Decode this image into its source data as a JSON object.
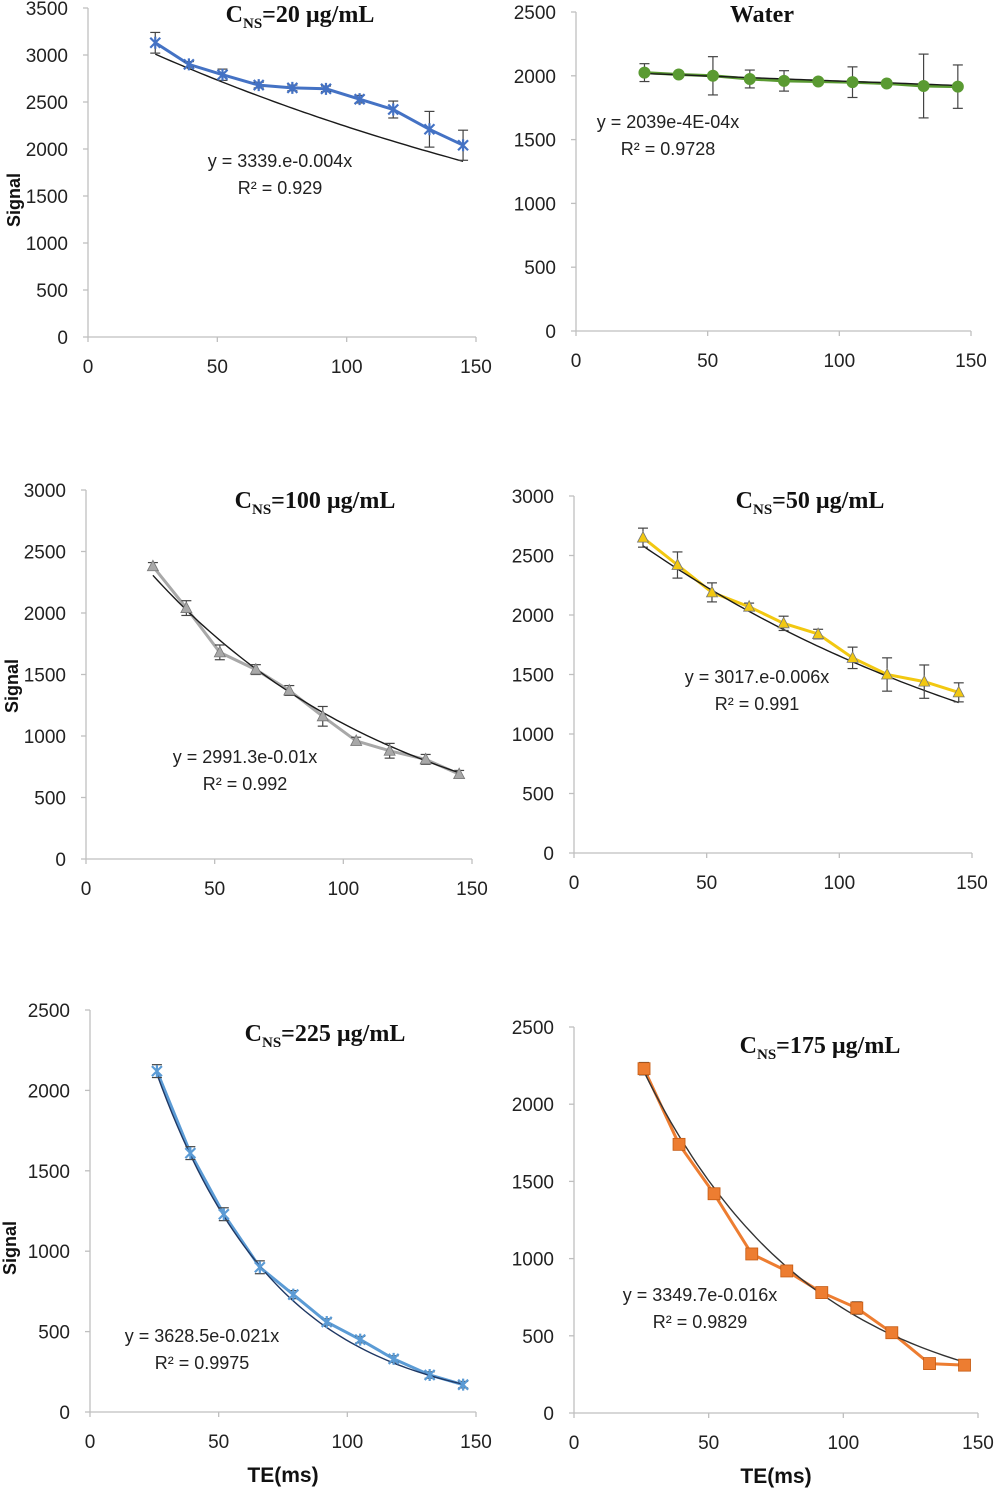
{
  "chart_data": [
    {
      "type": "line",
      "title": "C",
      "title_sub": "NS",
      "title_rest": "=20 µg/mL",
      "ylabel": "Signal",
      "xlabel": "",
      "xlim": [
        0,
        150
      ],
      "ylim": [
        0,
        3500
      ],
      "xticks": [
        0,
        50,
        100,
        150
      ],
      "yticks": [
        0,
        500,
        1000,
        1500,
        2000,
        2500,
        3000,
        3500
      ],
      "x": [
        26,
        39,
        52,
        66,
        79,
        92,
        105,
        118,
        132,
        145
      ],
      "series": [
        {
          "values": [
            3130,
            2900,
            2790,
            2680,
            2650,
            2640,
            2530,
            2420,
            2210,
            2040
          ],
          "errors": [
            110,
            30,
            60,
            30,
            30,
            30,
            40,
            90,
            190,
            160
          ],
          "color": "#4472c4",
          "marker": "star"
        }
      ],
      "trendline": {
        "a": 3339,
        "b": 0.004,
        "color": "#1a1a1a"
      },
      "equation": "y = 3339.e-0.004x",
      "r2": "R² = 0.929"
    },
    {
      "type": "line",
      "title": "Water",
      "ylabel": "",
      "xlabel": "",
      "xlim": [
        0,
        150
      ],
      "ylim": [
        0,
        2500
      ],
      "xticks": [
        0,
        50,
        100,
        150
      ],
      "yticks": [
        0,
        500,
        1000,
        1500,
        2000,
        2500
      ],
      "x": [
        26,
        39,
        52,
        66,
        79,
        92,
        105,
        118,
        132,
        145
      ],
      "series": [
        {
          "values": [
            2025,
            2010,
            2000,
            1975,
            1960,
            1955,
            1950,
            1940,
            1920,
            1915
          ],
          "errors": [
            70,
            20,
            150,
            70,
            80,
            20,
            120,
            20,
            250,
            170
          ],
          "color": "#5a9a32",
          "marker": "circle"
        }
      ],
      "trendline": {
        "a": 2039,
        "b": 0.0004,
        "color": "#1a1a1a"
      },
      "equation": "y = 2039e-4E-04x",
      "r2": "R² = 0.9728"
    },
    {
      "type": "line",
      "title": "C",
      "title_sub": "NS",
      "title_rest": "=100 µg/mL",
      "ylabel": "Signal",
      "xlabel": "",
      "xlim": [
        0,
        150
      ],
      "ylim": [
        0,
        3000
      ],
      "xticks": [
        0,
        50,
        100,
        150
      ],
      "yticks": [
        0,
        500,
        1000,
        1500,
        2000,
        2500,
        3000
      ],
      "x": [
        26,
        39,
        52,
        66,
        79,
        92,
        105,
        118,
        132,
        145
      ],
      "series": [
        {
          "values": [
            2380,
            2040,
            1680,
            1540,
            1370,
            1160,
            960,
            880,
            810,
            690
          ],
          "errors": [
            30,
            60,
            60,
            40,
            40,
            80,
            30,
            60,
            40,
            30
          ],
          "color": "#a8a8a8",
          "marker": "triangle"
        }
      ],
      "trendline": {
        "a": 2991.3,
        "b": 0.01,
        "color": "#1a1a1a"
      },
      "equation": "y = 2991.3e-0.01x",
      "r2": "R² = 0.992"
    },
    {
      "type": "line",
      "title": "C",
      "title_sub": "NS",
      "title_rest": "=50 µg/mL",
      "ylabel": "",
      "xlabel": "",
      "xlim": [
        0,
        150
      ],
      "ylim": [
        0,
        3000
      ],
      "xticks": [
        0,
        50,
        100,
        150
      ],
      "yticks": [
        0,
        500,
        1000,
        1500,
        2000,
        2500,
        3000
      ],
      "x": [
        26,
        39,
        52,
        66,
        79,
        92,
        105,
        118,
        132,
        145
      ],
      "series": [
        {
          "values": [
            2650,
            2420,
            2190,
            2070,
            1930,
            1840,
            1640,
            1500,
            1440,
            1350
          ],
          "errors": [
            80,
            110,
            80,
            30,
            60,
            40,
            90,
            140,
            140,
            80
          ],
          "color": "#f2c811",
          "marker": "triangle"
        }
      ],
      "trendline": {
        "a": 3017,
        "b": 0.006,
        "color": "#1a1a1a"
      },
      "equation": "y = 3017.e-0.006x",
      "r2": "R² = 0.991"
    },
    {
      "type": "line",
      "title": "C",
      "title_sub": "NS",
      "title_rest": "=225 µg/mL",
      "ylabel": "Signal",
      "xlabel": "TE(ms)",
      "xlim": [
        0,
        150
      ],
      "ylim": [
        0,
        2500
      ],
      "xticks": [
        0,
        50,
        100,
        150
      ],
      "yticks": [
        0,
        500,
        1000,
        1500,
        2000,
        2500
      ],
      "x": [
        26,
        39,
        52,
        66,
        79,
        92,
        105,
        118,
        132,
        145
      ],
      "series": [
        {
          "values": [
            2120,
            1610,
            1230,
            900,
            730,
            560,
            450,
            330,
            230,
            170
          ],
          "errors": [
            40,
            40,
            40,
            40,
            25,
            20,
            20,
            20,
            20,
            20
          ],
          "color": "#5b9bd5",
          "marker": "star"
        }
      ],
      "trendline": {
        "a": 3628.5,
        "b": 0.021,
        "color": "#1f3864"
      },
      "equation": "y = 3628.5e-0.021x",
      "r2": "R² = 0.9975"
    },
    {
      "type": "line",
      "title": "C",
      "title_sub": "NS",
      "title_rest": "=175 µg/mL",
      "ylabel": "",
      "xlabel": "TE(ms)",
      "xlim": [
        0,
        150
      ],
      "ylim": [
        0,
        2500
      ],
      "xticks": [
        0,
        50,
        100,
        150
      ],
      "yticks": [
        0,
        500,
        1000,
        1500,
        2000,
        2500
      ],
      "x": [
        26,
        39,
        52,
        66,
        79,
        92,
        105,
        118,
        132,
        145
      ],
      "series": [
        {
          "values": [
            2230,
            1740,
            1420,
            1030,
            920,
            780,
            680,
            520,
            320,
            310
          ],
          "errors": [
            40,
            25,
            20,
            20,
            20,
            20,
            40,
            20,
            20,
            20
          ],
          "color": "#ed7d31",
          "marker": "square"
        }
      ],
      "trendline": {
        "a": 3349.7,
        "b": 0.016,
        "color": "#333333"
      },
      "equation": "y = 3349.7e-0.016x",
      "r2": "R² = 0.9829"
    }
  ]
}
